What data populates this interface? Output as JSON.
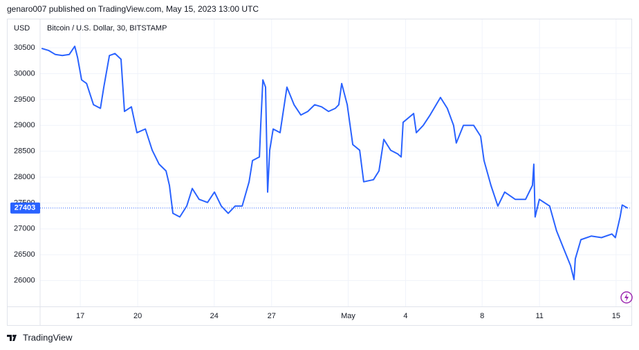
{
  "chart_data": {
    "type": "line",
    "published": "genaro007 published on TradingView.com, May 15, 2023 13:00 UTC",
    "title": "Bitcoin / U.S. Dollar, 30, BITSTAMP",
    "y_unit": "USD",
    "brand": "TradingView",
    "color": "#2962ff",
    "grid": true,
    "last_price": 27403,
    "xlim": [
      14.9,
      45.8
    ],
    "ylim": [
      25500,
      31050
    ],
    "yticks": [
      26000,
      26500,
      27000,
      27500,
      28000,
      28500,
      29000,
      29500,
      30000,
      30500
    ],
    "xticks": [
      17,
      20,
      24,
      27,
      {
        "value": 31,
        "label": "May"
      },
      {
        "value": 34,
        "label": "4"
      },
      {
        "value": 38,
        "label": "8"
      },
      {
        "value": 41,
        "label": "11"
      },
      {
        "value": 45,
        "label": "15"
      }
    ],
    "x": [
      14.98,
      15.34,
      15.7,
      16.06,
      16.42,
      16.71,
      16.86,
      17.07,
      17.33,
      17.69,
      18.05,
      18.23,
      18.52,
      18.81,
      19.13,
      19.31,
      19.67,
      19.96,
      20.4,
      20.76,
      21.12,
      21.48,
      21.66,
      21.84,
      22.2,
      22.56,
      22.85,
      23.21,
      23.65,
      24.01,
      24.37,
      24.73,
      25.09,
      25.46,
      25.82,
      26.0,
      26.36,
      26.43,
      26.54,
      26.68,
      26.79,
      26.9,
      27.08,
      27.44,
      27.8,
      28.17,
      28.53,
      28.89,
      29.25,
      29.61,
      29.97,
      30.33,
      30.51,
      30.66,
      30.95,
      31.24,
      31.6,
      31.81,
      32.32,
      32.61,
      32.86,
      33.22,
      33.58,
      33.77,
      33.87,
      34.42,
      34.56,
      34.92,
      35.28,
      35.82,
      36.18,
      36.51,
      36.65,
      37.02,
      37.56,
      37.92,
      38.1,
      38.46,
      38.82,
      39.18,
      39.73,
      40.27,
      40.63,
      40.7,
      40.77,
      40.99,
      41.53,
      41.89,
      42.26,
      42.62,
      42.8,
      42.87,
      43.16,
      43.7,
      44.24,
      44.78,
      44.96,
      45.21,
      45.32,
      45.61
    ],
    "values": [
      30490,
      30450,
      30370,
      30350,
      30370,
      30530,
      30310,
      29880,
      29810,
      29400,
      29330,
      29740,
      30350,
      30390,
      30280,
      29270,
      29360,
      28860,
      28930,
      28520,
      28250,
      28120,
      27840,
      27300,
      27230,
      27440,
      27780,
      27570,
      27510,
      27710,
      27440,
      27300,
      27440,
      27440,
      27910,
      28320,
      28390,
      29000,
      29880,
      29740,
      27710,
      28520,
      28930,
      28860,
      29740,
      29400,
      29200,
      29270,
      29400,
      29360,
      29270,
      29330,
      29400,
      29810,
      29400,
      28630,
      28520,
      27910,
      27950,
      28120,
      28730,
      28520,
      28450,
      28390,
      29060,
      29230,
      28860,
      29000,
      29200,
      29540,
      29330,
      29000,
      28660,
      29000,
      29000,
      28790,
      28320,
      27840,
      27440,
      27710,
      27570,
      27570,
      27840,
      28250,
      27230,
      27570,
      27440,
      26960,
      26620,
      26290,
      26020,
      26420,
      26790,
      26860,
      26830,
      26900,
      26830,
      27230,
      27460,
      27400
    ]
  }
}
